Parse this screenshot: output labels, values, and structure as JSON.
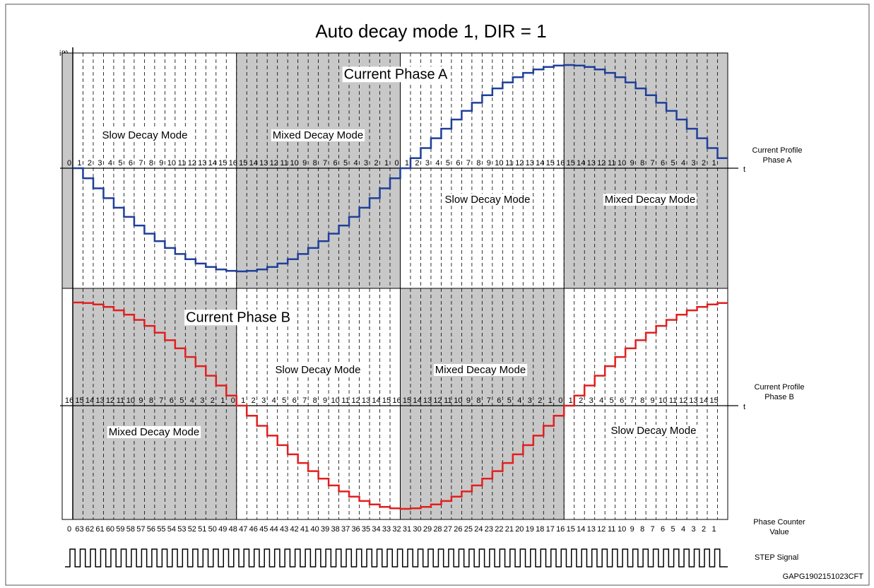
{
  "title": "Auto decay mode 1, DIR = 1",
  "axis_label": "i(t)",
  "time_label": "t",
  "phase_a": {
    "name": "Current Phase A",
    "side_label": [
      "Current Profile",
      "Phase A"
    ],
    "step_labels": [
      0,
      1,
      2,
      3,
      4,
      5,
      6,
      7,
      8,
      9,
      10,
      11,
      12,
      13,
      14,
      15,
      16,
      15,
      14,
      13,
      12,
      11,
      10,
      9,
      8,
      7,
      6,
      5,
      4,
      3,
      2,
      1,
      0,
      1,
      2,
      3,
      4,
      5,
      6,
      7,
      8,
      9,
      10,
      11,
      12,
      13,
      14,
      15,
      16,
      15,
      14,
      13,
      12,
      11,
      10,
      9,
      8,
      7,
      6,
      5,
      4,
      3,
      2,
      1
    ],
    "modes": [
      "Slow Decay Mode",
      "Mixed Decay Mode",
      "Slow Decay Mode",
      "Mixed Decay Mode"
    ]
  },
  "phase_b": {
    "name": "Current Phase B",
    "side_label": [
      "Current Profile",
      "Phase B"
    ],
    "step_labels": [
      16,
      15,
      14,
      13,
      12,
      11,
      10,
      9,
      8,
      7,
      6,
      5,
      4,
      3,
      2,
      1,
      0,
      1,
      2,
      3,
      4,
      5,
      6,
      7,
      8,
      9,
      10,
      11,
      12,
      13,
      14,
      15,
      16,
      15,
      14,
      13,
      12,
      11,
      10,
      9,
      8,
      7,
      6,
      5,
      4,
      3,
      2,
      1,
      0,
      1,
      2,
      3,
      4,
      5,
      6,
      7,
      8,
      9,
      10,
      11,
      12,
      13,
      14,
      15
    ],
    "modes": [
      "Mixed Decay Mode",
      "Slow Decay Mode",
      "Mixed Decay Mode",
      "Slow Decay Mode"
    ]
  },
  "phase_counter": {
    "label": [
      "Phase Counter",
      "Value"
    ],
    "values": [
      0,
      63,
      62,
      61,
      60,
      59,
      58,
      57,
      56,
      55,
      54,
      53,
      52,
      51,
      50,
      49,
      48,
      47,
      46,
      45,
      44,
      43,
      42,
      41,
      40,
      39,
      38,
      37,
      36,
      35,
      34,
      33,
      32,
      31,
      30,
      29,
      28,
      27,
      26,
      25,
      24,
      23,
      22,
      21,
      20,
      19,
      18,
      17,
      16,
      15,
      14,
      13,
      12,
      11,
      10,
      9,
      8,
      7,
      6,
      5,
      4,
      3,
      2,
      1
    ]
  },
  "step_signal": "STEP Signal",
  "figure_id": "GAPG1902151023CFT"
}
